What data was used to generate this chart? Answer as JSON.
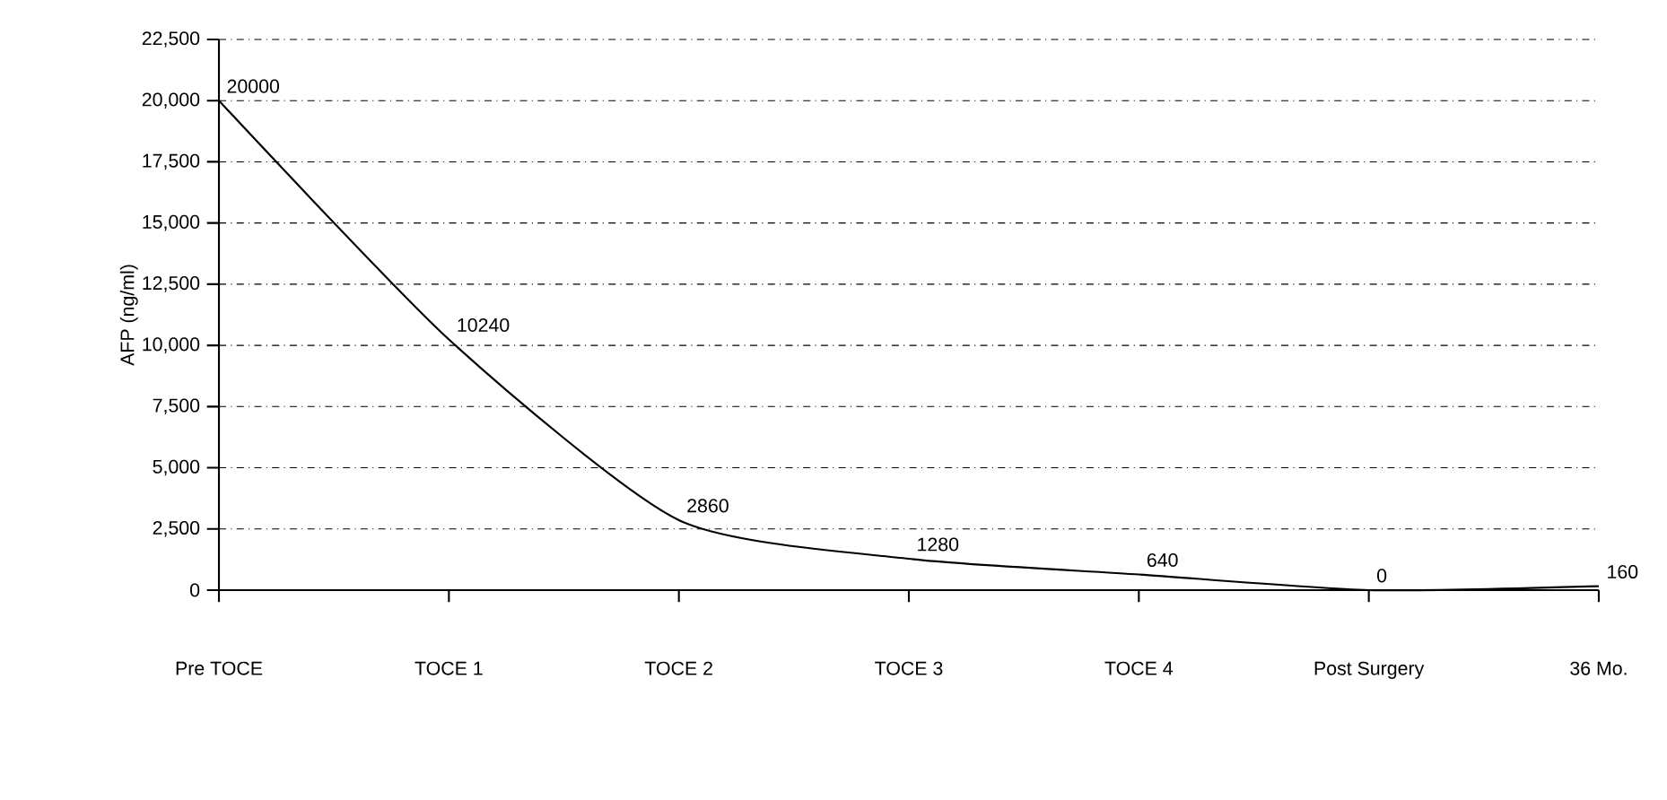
{
  "chart_data": {
    "type": "line",
    "ylabel": "AFP (ng/ml)",
    "categories": [
      "Pre TOCE",
      "TOCE 1",
      "TOCE 2",
      "TOCE 3",
      "TOCE 4",
      "Post Surgery",
      "36 Mo."
    ],
    "values": [
      20000,
      10240,
      2860,
      1280,
      640,
      0,
      160
    ],
    "color": "#000000",
    "data_labels": true,
    "grid": "y",
    "ylim": [
      0,
      22500
    ],
    "yticks": [
      0,
      {
        "value": 2500,
        "label": "2,500"
      },
      {
        "value": 5000,
        "label": "5,000"
      },
      {
        "value": 7500,
        "label": "7,500"
      },
      {
        "value": 10000,
        "label": "10,000"
      },
      {
        "value": 12500,
        "label": "12,500"
      },
      {
        "value": 15000,
        "label": "15,000"
      },
      {
        "value": 17500,
        "label": "17,500"
      },
      {
        "value": 20000,
        "label": "20,000"
      },
      {
        "value": 22500,
        "label": "22,500"
      }
    ]
  }
}
